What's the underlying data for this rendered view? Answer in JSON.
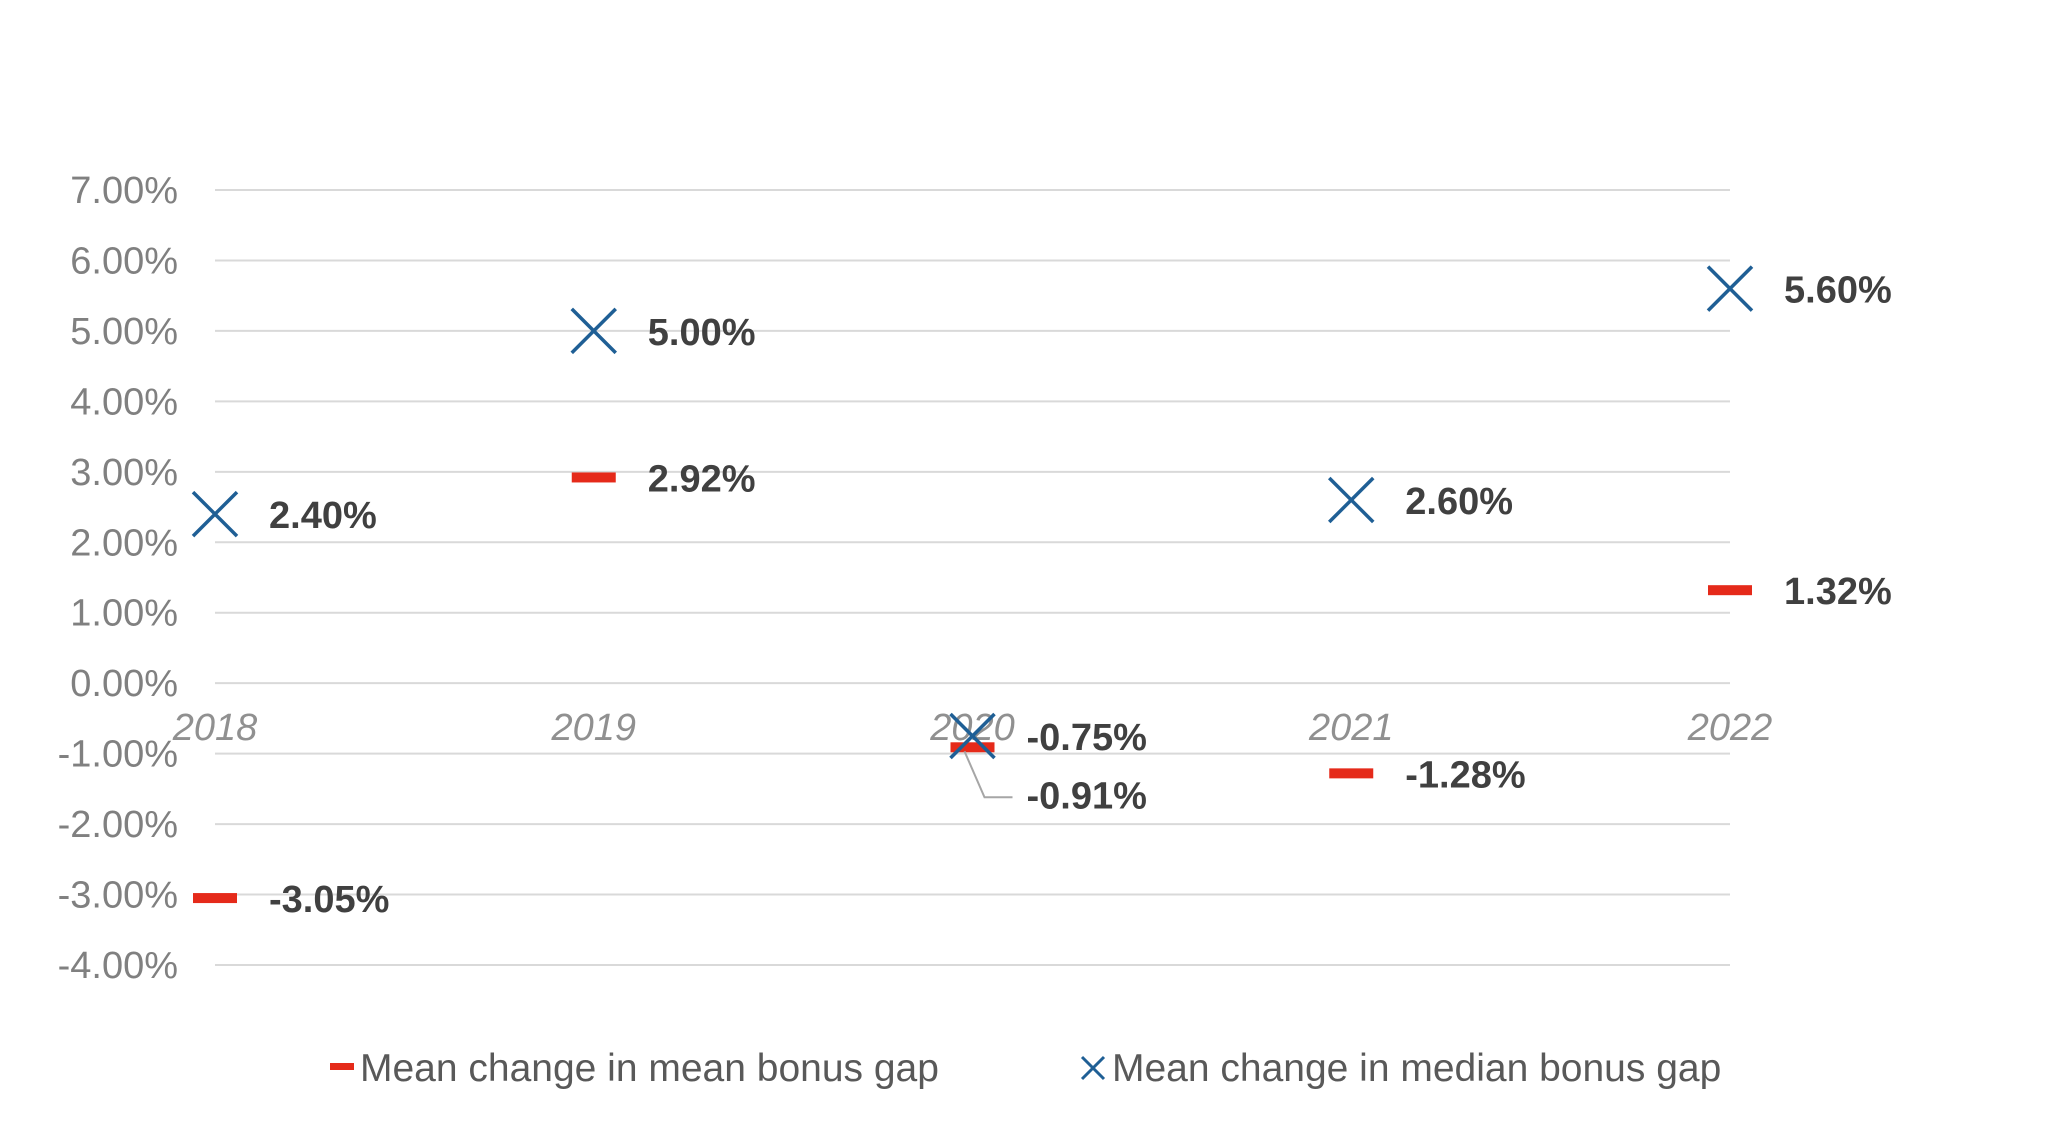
{
  "chart_data": {
    "type": "scatter",
    "categories": [
      "2018",
      "2019",
      "2020",
      "2021",
      "2022"
    ],
    "series": [
      {
        "name": "Mean change in mean bonus gap",
        "values": [
          -3.05,
          2.92,
          -0.91,
          -1.28,
          1.32
        ],
        "labels": [
          "-3.05%",
          "2.92%",
          "-0.91%",
          "-1.28%",
          "1.32%"
        ],
        "marker": "dash",
        "color": "#e52a1a"
      },
      {
        "name": "Mean change in median bonus gap",
        "values": [
          2.4,
          5.0,
          -0.75,
          2.6,
          5.6
        ],
        "labels": [
          "2.40%",
          "5.00%",
          "-0.75%",
          "2.60%",
          "5.60%"
        ],
        "marker": "x",
        "color": "#1f5f95"
      }
    ],
    "ylim": [
      -4,
      7
    ],
    "yticks": [
      7,
      6,
      5,
      4,
      3,
      2,
      1,
      0,
      -1,
      -2,
      -3,
      -4
    ],
    "ytick_labels": [
      "7.00%",
      "6.00%",
      "5.00%",
      "4.00%",
      "3.00%",
      "2.00%",
      "1.00%",
      "0.00%",
      "-1.00%",
      "-2.00%",
      "-3.00%",
      "-4.00%"
    ],
    "grid": true,
    "legend": "bottom",
    "title": "",
    "xlabel": "",
    "ylabel": ""
  }
}
